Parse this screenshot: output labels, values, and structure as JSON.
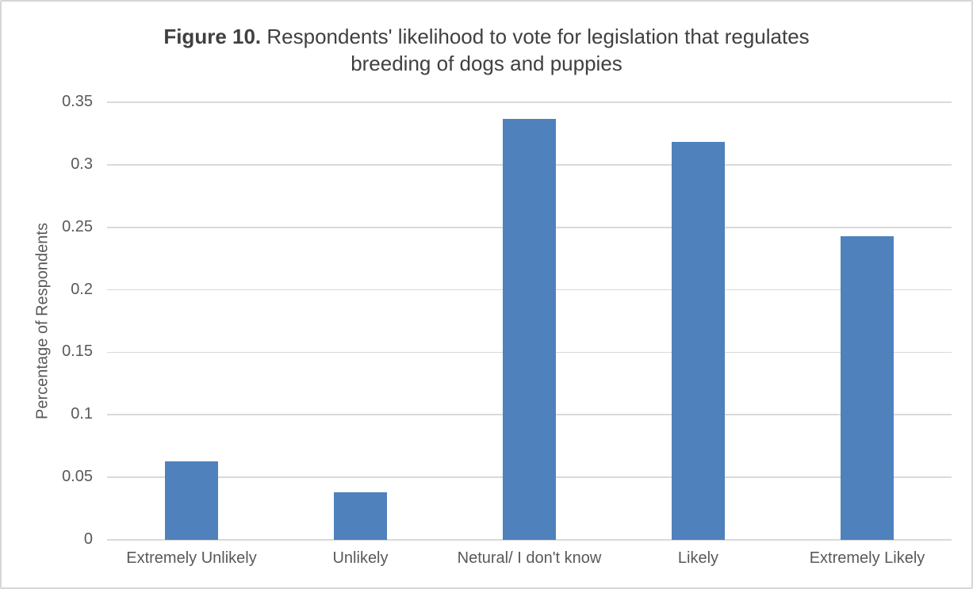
{
  "chart_data": {
    "type": "bar",
    "title": "Figure 10. Respondents' likelihood to vote for legislation that regulates breeding of dogs and puppies",
    "title_bold": "Figure 10.",
    "title_line1_rest": " Respondents' likelihood to vote for legislation that regulates",
    "title_line2": "breeding of dogs and puppies",
    "categories": [
      "Extremely Unlikely",
      "Unlikely",
      "Netural/ I don't know",
      "Likely",
      "Extremely Likely"
    ],
    "values": [
      0.063,
      0.038,
      0.337,
      0.318,
      0.243
    ],
    "xlabel": "",
    "ylabel": "Percentage of Respondents",
    "ylim": [
      0,
      0.35
    ],
    "ytick_step": 0.05,
    "yticks": [
      "0",
      "0.05",
      "0.1",
      "0.15",
      "0.2",
      "0.25",
      "0.3",
      "0.35"
    ],
    "grid": true,
    "legend": "none",
    "bar_color": "#4F81BD",
    "gridline_color": "#D9D9D9",
    "axis_text_color": "#595959",
    "title_color": "#404040"
  }
}
